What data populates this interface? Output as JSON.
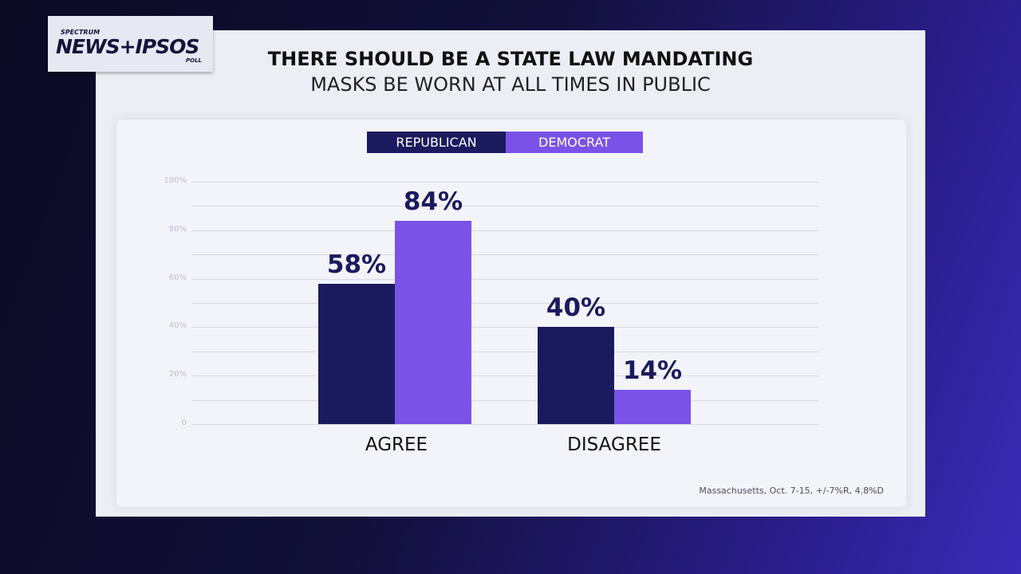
{
  "logo": {
    "top": "SPECTRUM",
    "main": "NEWS+IPSOS",
    "sub": "POLL"
  },
  "title_line1": "THERE SHOULD BE A STATE LAW MANDATING",
  "title_line2": "MASKS BE WORN AT ALL TIMES IN PUBLIC",
  "source": "Massachusetts, Oct. 7-15, +/-7%R, 4.8%D",
  "chart_data": {
    "type": "bar",
    "categories": [
      "AGREE",
      "DISAGREE"
    ],
    "series": [
      {
        "name": "REPUBLICAN",
        "color": "#1c1a5e",
        "values": [
          58,
          40
        ],
        "labels": [
          "58%",
          "40%"
        ]
      },
      {
        "name": "DEMOCRAT",
        "color": "#7b52e8",
        "values": [
          84,
          14
        ],
        "labels": [
          "84%",
          "14%"
        ]
      }
    ],
    "ylim": [
      0,
      100
    ],
    "yticks": [
      "0",
      "20%",
      "40%",
      "60%",
      "80%",
      "100%"
    ],
    "grid": true,
    "legend": "top-center"
  }
}
